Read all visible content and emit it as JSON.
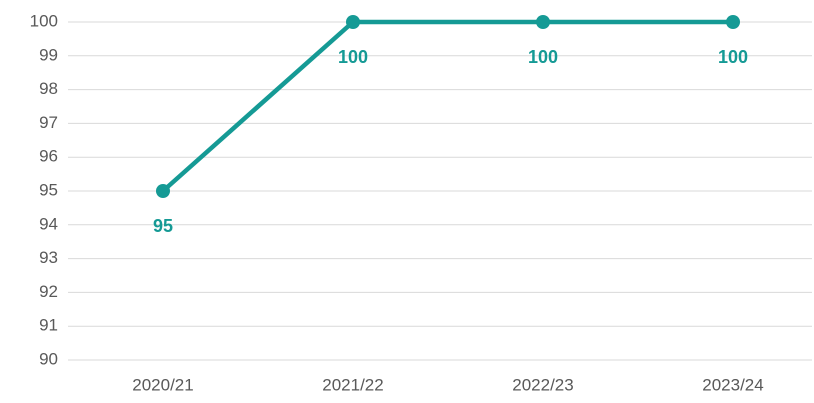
{
  "chart_data": {
    "type": "line",
    "categories": [
      "2020/21",
      "2021/22",
      "2022/23",
      "2023/24"
    ],
    "values": [
      95,
      100,
      100,
      100
    ],
    "color": "#159a95",
    "ylim": [
      90,
      100
    ],
    "yticks": [
      90,
      91,
      92,
      93,
      94,
      95,
      96,
      97,
      98,
      99,
      100
    ],
    "grid": true
  }
}
